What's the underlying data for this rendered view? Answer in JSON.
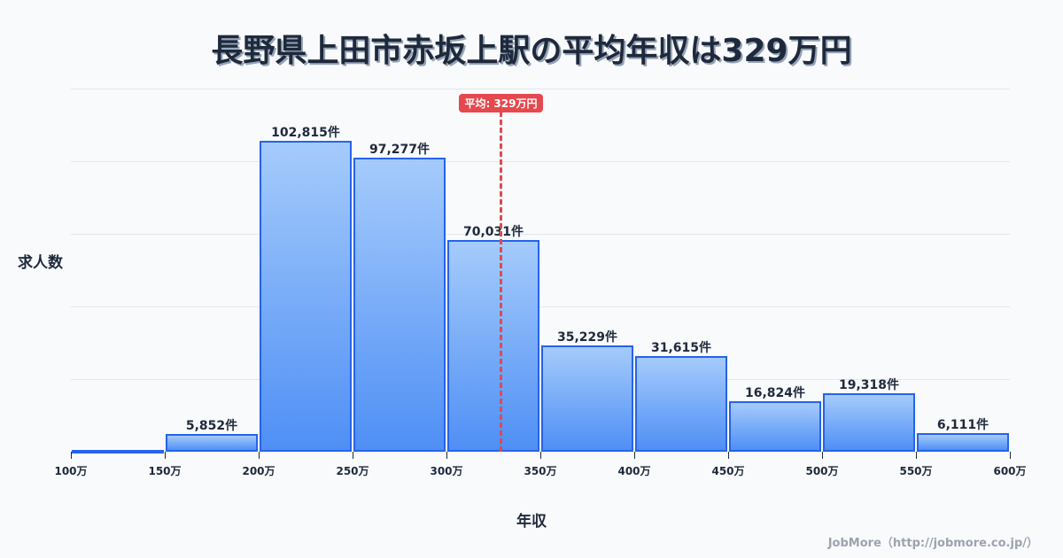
{
  "title": "長野県上田市赤坂上駅の平均年収は329万円",
  "average_badge": "平均: 329万円",
  "ylabel": "求人数",
  "xlabel": "年収",
  "credit": "JobMore（http://jobmore.co.jp/）",
  "colors": {
    "bar_top": "#a5cbfb",
    "bar_bottom": "#4f8ff5",
    "bar_border": "#2563eb",
    "average_line": "#e5484d",
    "title": "#1e293b",
    "background": "#f8fafc"
  },
  "chart_data": {
    "type": "bar",
    "title": "長野県上田市赤坂上駅の平均年収は329万円",
    "xlabel": "年収",
    "ylabel": "求人数",
    "bin_edges": [
      100,
      150,
      200,
      250,
      300,
      350,
      400,
      450,
      500,
      550,
      600
    ],
    "tick_labels": [
      "100万",
      "150万",
      "200万",
      "250万",
      "300万",
      "350万",
      "400万",
      "450万",
      "500万",
      "550万",
      "600万"
    ],
    "categories": [
      "100-150万",
      "150-200万",
      "200-250万",
      "250-300万",
      "300-350万",
      "350-400万",
      "400-450万",
      "450-500万",
      "500-550万",
      "550-600万"
    ],
    "values": [
      0,
      5852,
      102815,
      97277,
      70031,
      35229,
      31615,
      16824,
      19318,
      6111
    ],
    "value_labels": [
      "",
      "5,852件",
      "102,815件",
      "97,277件",
      "70,031件",
      "35,229件",
      "31,615件",
      "16,824件",
      "19,318件",
      "6,111件"
    ],
    "ylim": [
      0,
      120000
    ],
    "grid": true,
    "y_tick_labels_visible": false,
    "annotations": [
      {
        "type": "vertical-line",
        "x": 329,
        "label": "平均: 329万円",
        "style": "dashed",
        "color": "#e5484d"
      }
    ],
    "legend": null
  }
}
